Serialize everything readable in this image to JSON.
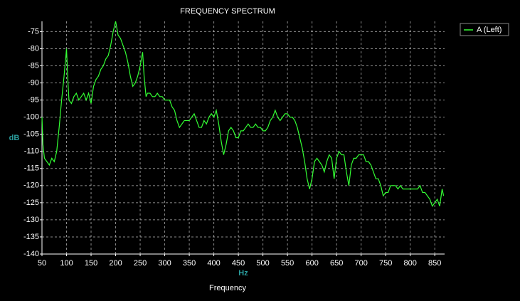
{
  "chart_data": {
    "type": "line",
    "title": "FREQUENCY SPECTRUM",
    "xlabel": "Frequency",
    "x_unit": "Hz",
    "ylabel": "dB",
    "xlim": [
      50,
      870
    ],
    "ylim": [
      -140,
      -72
    ],
    "xticks": [
      50,
      100,
      150,
      200,
      250,
      300,
      350,
      400,
      450,
      500,
      550,
      600,
      650,
      700,
      750,
      800,
      850
    ],
    "yticks": [
      -75,
      -80,
      -85,
      -90,
      -95,
      -100,
      -105,
      -110,
      -115,
      -120,
      -125,
      -130,
      -135,
      -140
    ],
    "grid": true,
    "legend": "top-right",
    "x": [
      50,
      52,
      55,
      60,
      65,
      70,
      75,
      80,
      85,
      90,
      95,
      100,
      103,
      105,
      110,
      115,
      120,
      125,
      130,
      135,
      140,
      145,
      150,
      155,
      160,
      165,
      170,
      175,
      180,
      185,
      190,
      195,
      200,
      205,
      210,
      215,
      220,
      225,
      230,
      235,
      240,
      245,
      250,
      255,
      258,
      262,
      265,
      270,
      275,
      280,
      285,
      290,
      295,
      300,
      305,
      310,
      315,
      320,
      325,
      330,
      335,
      340,
      345,
      350,
      355,
      360,
      365,
      370,
      375,
      380,
      385,
      390,
      395,
      400,
      405,
      410,
      415,
      420,
      425,
      430,
      435,
      440,
      445,
      450,
      455,
      460,
      465,
      470,
      475,
      480,
      485,
      490,
      495,
      500,
      505,
      510,
      515,
      520,
      525,
      530,
      535,
      540,
      545,
      550,
      555,
      560,
      565,
      570,
      575,
      580,
      585,
      590,
      595,
      600,
      605,
      610,
      615,
      620,
      625,
      630,
      635,
      640,
      645,
      650,
      655,
      660,
      665,
      670,
      675,
      680,
      685,
      690,
      695,
      700,
      705,
      710,
      715,
      720,
      725,
      730,
      735,
      740,
      745,
      750,
      755,
      760,
      765,
      770,
      775,
      780,
      785,
      790,
      795,
      800,
      805,
      810,
      815,
      820,
      825,
      830,
      835,
      840,
      845,
      850,
      855,
      860,
      865,
      868
    ],
    "series": [
      {
        "name": "A (Left)",
        "color": "#33ff33",
        "values": [
          -100,
          -108,
          -112,
          -113,
          -114,
          -112,
          -113,
          -110,
          -103,
          -95,
          -88,
          -80,
          -90,
          -95,
          -96,
          -94,
          -93,
          -95,
          -94,
          -93,
          -95,
          -93,
          -96,
          -91,
          -89,
          -88,
          -86,
          -85,
          -83,
          -82,
          -79,
          -75,
          -72,
          -76,
          -77,
          -79,
          -81,
          -84,
          -88,
          -91,
          -90,
          -88,
          -85,
          -81,
          -88,
          -94,
          -93,
          -93,
          -94,
          -94,
          -93,
          -94,
          -94,
          -95,
          -95,
          -95,
          -97,
          -98,
          -101,
          -103,
          -102,
          -101,
          -101,
          -101,
          -100,
          -99,
          -101,
          -103,
          -103,
          -101,
          -102,
          -100,
          -99,
          -100,
          -98,
          -102,
          -107,
          -111,
          -108,
          -104,
          -103,
          -104,
          -106,
          -106,
          -104,
          -104,
          -103,
          -102,
          -103,
          -103,
          -102,
          -103,
          -103,
          -104,
          -104,
          -103,
          -101,
          -100,
          -98,
          -100,
          -101,
          -100,
          -99,
          -99,
          -100,
          -100,
          -101,
          -103,
          -106,
          -109,
          -113,
          -118,
          -121,
          -118,
          -113,
          -112,
          -113,
          -114,
          -116,
          -113,
          -111,
          -112,
          -118,
          -112,
          -110,
          -111,
          -111,
          -116,
          -120,
          -114,
          -112,
          -112,
          -111,
          -111,
          -111,
          -113,
          -113,
          -114,
          -116,
          -118,
          -118,
          -120,
          -123,
          -122,
          -122,
          -120,
          -120,
          -120,
          -121,
          -120,
          -121,
          -121,
          -121,
          -121,
          -121,
          -121,
          -121,
          -120,
          -122,
          -122,
          -123,
          -124,
          -126,
          -125,
          -124,
          -126,
          -121,
          -123
        ]
      }
    ]
  }
}
